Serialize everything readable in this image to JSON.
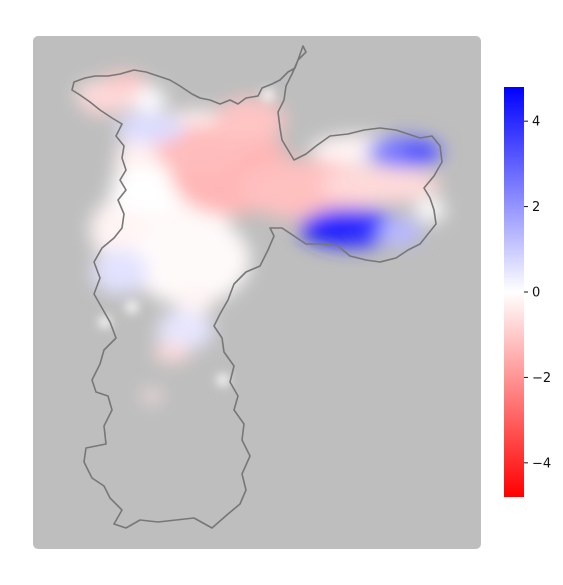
{
  "colorbar": {
    "ticks": [
      "4",
      "2",
      "0",
      "−2",
      "−4"
    ],
    "tick_values": [
      4,
      2,
      0,
      -2,
      -4
    ],
    "range": [
      -4.8,
      4.8
    ],
    "colors": {
      "positive": "#0000ff",
      "zero": "#ffffff",
      "negative": "#ff0000"
    }
  },
  "style": {
    "background": "#bebebe",
    "outline": "#777777"
  }
}
